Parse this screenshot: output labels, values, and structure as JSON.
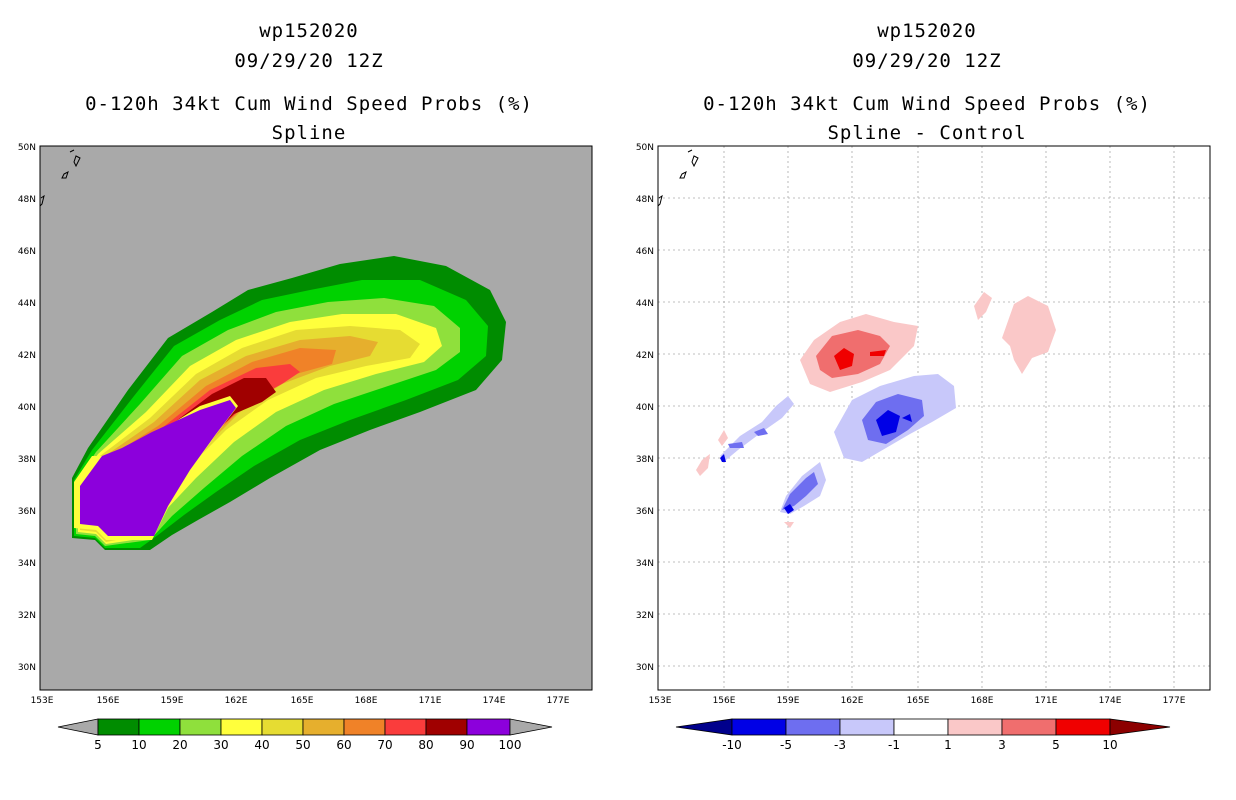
{
  "left_panel": {
    "storm_id": "wp152020",
    "datetime": "09/29/20 12Z",
    "product": "0-120h 34kt Cum Wind Speed Probs (%)",
    "subtitle": "Spline",
    "background_color": "#a9a9a9",
    "colorbar": {
      "labels": [
        "5",
        "10",
        "20",
        "30",
        "40",
        "50",
        "60",
        "70",
        "80",
        "90",
        "100"
      ],
      "colors": [
        "#008c00",
        "#00d200",
        "#8fe03c",
        "#ffff3c",
        "#e6dc32",
        "#e6af2d",
        "#f08228",
        "#fa3c3c",
        "#a00000",
        "#8c00dc"
      ],
      "end_color": "#a9a9a9"
    }
  },
  "right_panel": {
    "storm_id": "wp152020",
    "datetime": "09/29/20 12Z",
    "product": "0-120h 34kt Cum Wind Speed Probs (%)",
    "subtitle": "Spline - Control",
    "background_color": "#ffffff",
    "colorbar": {
      "labels": [
        "-10",
        "-5",
        "-3",
        "-1",
        "1",
        "3",
        "5",
        "10"
      ],
      "colors": [
        "#0000e6",
        "#6e6ef0",
        "#c8c8fa",
        "#ffffff",
        "#fac8c8",
        "#f06e6e",
        "#f00000"
      ],
      "low_end_color": "#00008c",
      "high_end_color": "#8c0000"
    }
  },
  "map": {
    "lat_labels": [
      "50N",
      "48N",
      "46N",
      "44N",
      "42N",
      "40N",
      "38N",
      "36N",
      "34N",
      "32N",
      "30N"
    ],
    "lon_labels": [
      "153E",
      "156E",
      "159E",
      "162E",
      "165E",
      "168E",
      "171E",
      "174E",
      "177E"
    ]
  }
}
